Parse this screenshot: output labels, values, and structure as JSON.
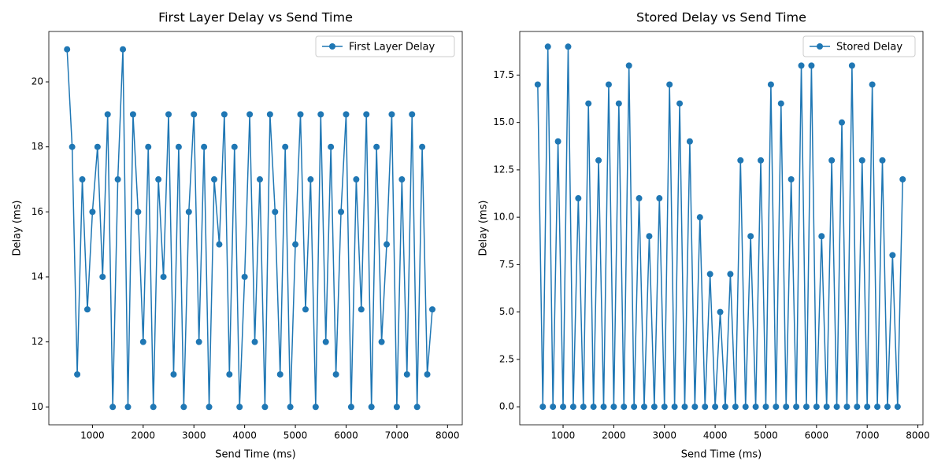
{
  "chart_data": [
    {
      "type": "line",
      "title": "First Layer Delay vs Send Time",
      "x_label": "Send Time (ms)",
      "y_label": "Delay (ms)",
      "x": [
        500,
        600,
        700,
        800,
        900,
        1000,
        1100,
        1200,
        1300,
        1400,
        1500,
        1600,
        1700,
        1800,
        1900,
        2000,
        2100,
        2200,
        2300,
        2400,
        2500,
        2600,
        2700,
        2800,
        2900,
        3000,
        3100,
        3200,
        3300,
        3400,
        3500,
        3600,
        3700,
        3800,
        3900,
        4000,
        4100,
        4200,
        4300,
        4400,
        4500,
        4600,
        4700,
        4800,
        4900,
        5000,
        5100,
        5200,
        5300,
        5400,
        5500,
        5600,
        5700,
        5800,
        5900,
        6000,
        6100,
        6200,
        6300,
        6400,
        6500,
        6600,
        6700,
        6800,
        6900,
        7000,
        7100,
        7200,
        7300,
        7400,
        7500,
        7600,
        7700
      ],
      "series": [
        {
          "name": "First Layer Delay",
          "color": "#1f77b4",
          "values": [
            21,
            18,
            11,
            17,
            13,
            16,
            18,
            14,
            19,
            10,
            17,
            21,
            10,
            19,
            16,
            12,
            18,
            10,
            17,
            14,
            19,
            11,
            18,
            10,
            16,
            19,
            12,
            18,
            10,
            17,
            15,
            19,
            11,
            18,
            10,
            14,
            19,
            12,
            17,
            10,
            19,
            16,
            11,
            18,
            10,
            15,
            19,
            13,
            17,
            10,
            19,
            12,
            18,
            11,
            16,
            19,
            10,
            17,
            13,
            19,
            10,
            18,
            12,
            15,
            19,
            10,
            17,
            11,
            19,
            10,
            18,
            11,
            13
          ]
        }
      ],
      "xlim": [
        140,
        8290
      ],
      "ylim": [
        9.45,
        21.55
      ],
      "xticks": [
        1000,
        2000,
        3000,
        4000,
        5000,
        6000,
        7000,
        8000
      ],
      "yticks": [
        10,
        12,
        14,
        16,
        18,
        20
      ],
      "legend": "upper right"
    },
    {
      "type": "line",
      "title": "Stored Delay vs Send Time",
      "x_label": "Send Time (ms)",
      "y_label": "Delay (ms)",
      "x": [
        500,
        600,
        700,
        800,
        900,
        1000,
        1100,
        1200,
        1300,
        1400,
        1500,
        1600,
        1700,
        1800,
        1900,
        2000,
        2100,
        2200,
        2300,
        2400,
        2500,
        2600,
        2700,
        2800,
        2900,
        3000,
        3100,
        3200,
        3300,
        3400,
        3500,
        3600,
        3700,
        3800,
        3900,
        4000,
        4100,
        4200,
        4300,
        4400,
        4500,
        4600,
        4700,
        4800,
        4900,
        5000,
        5100,
        5200,
        5300,
        5400,
        5500,
        5600,
        5700,
        5800,
        5900,
        6000,
        6100,
        6200,
        6300,
        6400,
        6500,
        6600,
        6700,
        6800,
        6900,
        7000,
        7100,
        7200,
        7300,
        7400,
        7500,
        7600,
        7700
      ],
      "series": [
        {
          "name": "Stored Delay",
          "color": "#1f77b4",
          "values": [
            17,
            0,
            19,
            0,
            14,
            0,
            19,
            0,
            11,
            0,
            16,
            0,
            13,
            0,
            17,
            0,
            16,
            0,
            18,
            0,
            11,
            0,
            9,
            0,
            11,
            0,
            17,
            0,
            16,
            0,
            14,
            0,
            10,
            0,
            7,
            0,
            5,
            0,
            7,
            0,
            13,
            0,
            9,
            0,
            13,
            0,
            17,
            0,
            16,
            0,
            12,
            0,
            18,
            0,
            18,
            0,
            9,
            0,
            13,
            0,
            15,
            0,
            18,
            0,
            13,
            0,
            17,
            0,
            13,
            0,
            8,
            0,
            12
          ]
        }
      ],
      "xlim": [
        145,
        8100
      ],
      "ylim": [
        -0.95,
        19.8
      ],
      "xticks": [
        1000,
        2000,
        3000,
        4000,
        5000,
        6000,
        7000,
        8000
      ],
      "yticks": [
        {
          "value": 0,
          "label": "0.0"
        },
        {
          "value": 2.5,
          "label": "2.5"
        },
        {
          "value": 5,
          "label": "5.0"
        },
        {
          "value": 7.5,
          "label": "7.5"
        },
        {
          "value": 10,
          "label": "10.0"
        },
        {
          "value": 12.5,
          "label": "12.5"
        },
        {
          "value": 15,
          "label": "15.0"
        },
        {
          "value": 17.5,
          "label": "17.5"
        }
      ],
      "legend": "upper right"
    }
  ]
}
